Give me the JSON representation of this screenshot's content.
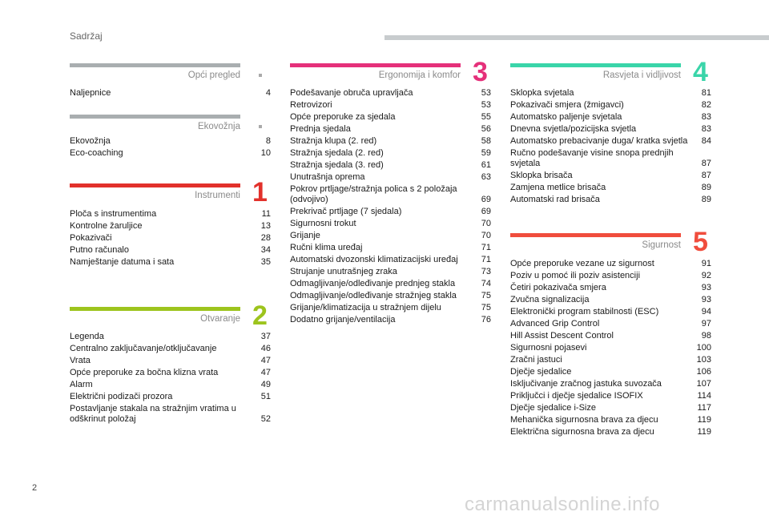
{
  "header": {
    "title": "Sadržaj"
  },
  "page_number": "2",
  "watermark": "carmanualsonline.info",
  "colors": {
    "opci": "#a9aeb0",
    "ekovoznja": "#a9aeb0",
    "instrumenti": "#e2312b",
    "otvaranje": "#9dc41d",
    "ergonomija": "#e5307a",
    "rasvjeta": "#3ad5a9",
    "sigurnost": "#f04d3d"
  },
  "sections": {
    "opci": {
      "title": "Opći pregled",
      "entries": [
        {
          "title": "Naljepnice",
          "page": "4"
        }
      ]
    },
    "ekovoznja": {
      "title": "Ekovožnja",
      "entries": [
        {
          "title": "Ekovožnja",
          "page": "8"
        },
        {
          "title": "Eco-coaching",
          "page": "10"
        }
      ]
    },
    "instrumenti": {
      "title": "Instrumenti",
      "number": "1",
      "entries": [
        {
          "title": "Ploča s instrumentima",
          "page": "11"
        },
        {
          "title": "Kontrolne žaruljice",
          "page": "13"
        },
        {
          "title": "Pokazivači",
          "page": "28"
        },
        {
          "title": "Putno računalo",
          "page": "34"
        },
        {
          "title": "Namještanje datuma i sata",
          "page": "35"
        }
      ]
    },
    "otvaranje": {
      "title": "Otvaranje",
      "number": "2",
      "entries": [
        {
          "title": "Legenda",
          "page": "37"
        },
        {
          "title": "Centralno zaključavanje/otključavanje",
          "page": "46"
        },
        {
          "title": "Vrata",
          "page": "47"
        },
        {
          "title": "Opće preporuke za bočna klizna vrata",
          "page": "47"
        },
        {
          "title": "Alarm",
          "page": "49"
        },
        {
          "title": "Električni podizači prozora",
          "page": "51"
        },
        {
          "title": "Postavljanje stakala na stražnjim vratima u odškrinut položaj",
          "page": "52"
        }
      ]
    },
    "ergonomija": {
      "title": "Ergonomija i komfor",
      "number": "3",
      "entries": [
        {
          "title": "Podešavanje obruča upravljača",
          "page": "53"
        },
        {
          "title": "Retrovizori",
          "page": "53"
        },
        {
          "title": "Opće preporuke za sjedala",
          "page": "55"
        },
        {
          "title": "Prednja sjedala",
          "page": "56"
        },
        {
          "title": "Stražnja klupa (2. red)",
          "page": "58"
        },
        {
          "title": "Stražnja sjedala (2. red)",
          "page": "59"
        },
        {
          "title": "Stražnja sjedala (3. red)",
          "page": "61"
        },
        {
          "title": "Unutrašnja oprema",
          "page": "63"
        },
        {
          "title": "Pokrov prtljage/stražnja polica s 2 položaja (odvojivo)",
          "page": "69"
        },
        {
          "title": "Prekrivač prtljage (7 sjedala)",
          "page": "69"
        },
        {
          "title": "Sigurnosni trokut",
          "page": "70"
        },
        {
          "title": "Grijanje",
          "page": "70"
        },
        {
          "title": "Ručni klima uređaj",
          "page": "71"
        },
        {
          "title": "Automatski dvozonski klimatizacijski uređaj",
          "page": "71"
        },
        {
          "title": "Strujanje unutrašnjeg zraka",
          "page": "73"
        },
        {
          "title": "Odmagljivanje/odleđivanje prednjeg stakla",
          "page": "74"
        },
        {
          "title": "Odmagljivanje/odleđivanje stražnjeg stakla",
          "page": "75"
        },
        {
          "title": "Grijanje/klimatizacija u stražnjem dijelu",
          "page": "75"
        },
        {
          "title": "Dodatno grijanje/ventilacija",
          "page": "76"
        }
      ]
    },
    "rasvjeta": {
      "title": "Rasvjeta i vidljivost",
      "number": "4",
      "entries": [
        {
          "title": "Sklopka svjetala",
          "page": "81"
        },
        {
          "title": "Pokazivači smjera (žmigavci)",
          "page": "82"
        },
        {
          "title": "Automatsko paljenje svjetala",
          "page": "83"
        },
        {
          "title": "Dnevna svjetla/pozicijska svjetla",
          "page": "83"
        },
        {
          "title": "Automatsko prebacivanje duga/ kratka svjetla",
          "page": "84"
        },
        {
          "title": "Ručno podešavanje visine snopa prednjih svjetala",
          "page": "87"
        },
        {
          "title": "Sklopka brisača",
          "page": "87"
        },
        {
          "title": "Zamjena metlice brisača",
          "page": "89"
        },
        {
          "title": "Automatski rad brisača",
          "page": "89"
        }
      ]
    },
    "sigurnost": {
      "title": "Sigurnost",
      "number": "5",
      "entries": [
        {
          "title": "Opće preporuke vezane uz sigurnost",
          "page": "91"
        },
        {
          "title": "Poziv u pomoć ili poziv asistenciji",
          "page": "92"
        },
        {
          "title": "Četiri pokazivača smjera",
          "page": "93"
        },
        {
          "title": "Zvučna signalizacija",
          "page": "93"
        },
        {
          "title": "Elektronički program stabilnosti (ESC)",
          "page": "94"
        },
        {
          "title": "Advanced Grip Control",
          "page": "97"
        },
        {
          "title": "Hill Assist Descent Control",
          "page": "98"
        },
        {
          "title": "Sigurnosni pojasevi",
          "page": "100"
        },
        {
          "title": "Zračni jastuci",
          "page": "103"
        },
        {
          "title": "Dječje sjedalice",
          "page": "106"
        },
        {
          "title": "Isključivanje zračnog jastuka suvozača",
          "page": "107"
        },
        {
          "title": "Priključci i dječje sjedalice ISOFIX",
          "page": "114"
        },
        {
          "title": "Dječje sjedalice i-Size",
          "page": "117"
        },
        {
          "title": "Mehanička sigurnosna brava za djecu",
          "page": "119"
        },
        {
          "title": "Električna sigurnosna brava za djecu",
          "page": "119"
        }
      ]
    }
  }
}
